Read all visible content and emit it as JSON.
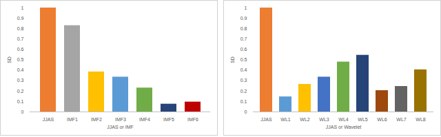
{
  "chart_data": [
    {
      "type": "bar",
      "x_label": "JJAS or IMF",
      "y_label": "SD",
      "categories": [
        "JJAS",
        "IMF1",
        "IMF2",
        "IMF3",
        "IMF4",
        "IMF5",
        "IMF6"
      ],
      "values": [
        1.0,
        0.83,
        0.385,
        0.335,
        0.23,
        0.075,
        0.095
      ],
      "colors": [
        "#ed7d31",
        "#a5a5a5",
        "#ffc000",
        "#5b9bd5",
        "#70ad47",
        "#264478",
        "#c00000"
      ],
      "ylim": [
        0,
        1
      ],
      "yticks": [
        0,
        0.1,
        0.2,
        0.3,
        0.4,
        0.5,
        0.6,
        0.7,
        0.8,
        0.9,
        1
      ],
      "grid": false
    },
    {
      "type": "bar",
      "x_label": "JJAS or Wavelet",
      "y_label": "SD",
      "categories": [
        "JJAS",
        "WL1",
        "WL2",
        "WL3",
        "WL4",
        "WL5",
        "WL6",
        "WL7",
        "WL8"
      ],
      "values": [
        1.0,
        0.145,
        0.265,
        0.335,
        0.48,
        0.545,
        0.205,
        0.245,
        0.405
      ],
      "colors": [
        "#ed7d31",
        "#5b9bd5",
        "#ffc000",
        "#4472c4",
        "#70ad47",
        "#264478",
        "#9e480e",
        "#636363",
        "#997300"
      ],
      "ylim": [
        0,
        1
      ],
      "yticks": [
        0,
        0.1,
        0.2,
        0.3,
        0.4,
        0.5,
        0.6,
        0.7,
        0.8,
        0.9,
        1
      ],
      "grid": false
    }
  ]
}
